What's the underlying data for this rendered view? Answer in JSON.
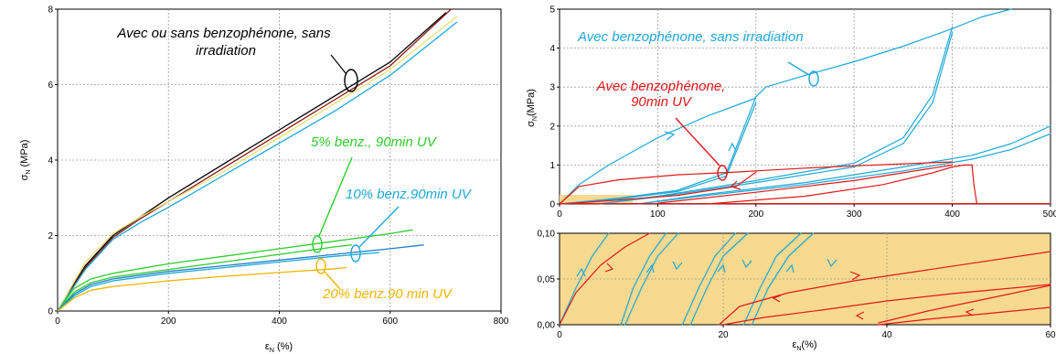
{
  "colors": {
    "black": "#000000",
    "dark_red": "#8b1a1a",
    "yellow_light": "#e8e070",
    "cyan": "#1ea8d8",
    "green": "#2ecc2e",
    "blue": "#1f7fc8",
    "orange": "#f0b400",
    "red": "#e01818",
    "inset_fill": "#f7d98f"
  },
  "chart_data": [
    {
      "type": "line",
      "xlabel_main": "ε",
      "xlabel_sub": "N",
      "xlabel_unit": " (%)",
      "ylabel_main": "σ",
      "ylabel_sub": "N",
      "ylabel_unit": " (MPa)",
      "xlim": [
        0,
        800
      ],
      "ylim": [
        0,
        8
      ],
      "xticks": [
        "0",
        "200",
        "400",
        "600",
        "800"
      ],
      "yticks": [
        "0",
        "2",
        "4",
        "6",
        "8"
      ],
      "annotations": [
        {
          "text": "Avec ou sans benzophénone, sans",
          "color": "#000000"
        },
        {
          "text": "irradiation",
          "color": "#000000"
        },
        {
          "text": "5% benz., 90min UV",
          "color": "#2ecc2e"
        },
        {
          "text": "10% benz.90min UV",
          "color": "#1ea8d8"
        },
        {
          "text": "20% benz.90 min UV",
          "color": "#f0b400"
        }
      ],
      "series": [
        {
          "color": "#000000",
          "x": [
            0,
            50,
            100,
            150,
            200,
            300,
            400,
            500,
            600,
            700
          ],
          "y": [
            0,
            1.2,
            2.0,
            2.5,
            3.0,
            3.9,
            4.8,
            5.7,
            6.6,
            7.9
          ]
        },
        {
          "color": "#8b1a1a",
          "x": [
            0,
            50,
            100,
            150,
            200,
            300,
            400,
            500,
            600,
            710
          ],
          "y": [
            0,
            1.15,
            1.95,
            2.45,
            2.9,
            3.8,
            4.7,
            5.6,
            6.5,
            8.0
          ]
        },
        {
          "color": "#e8e070",
          "x": [
            0,
            50,
            100,
            150,
            200,
            300,
            400,
            500,
            600,
            720
          ],
          "y": [
            0,
            1.3,
            2.05,
            2.5,
            2.9,
            3.7,
            4.6,
            5.5,
            6.4,
            7.8
          ]
        },
        {
          "color": "#1ea8d8",
          "x": [
            0,
            50,
            100,
            150,
            200,
            300,
            400,
            500,
            600,
            720
          ],
          "y": [
            0,
            1.1,
            1.9,
            2.35,
            2.75,
            3.6,
            4.45,
            5.3,
            6.25,
            7.65
          ]
        },
        {
          "color": "#2ecc2e",
          "x": [
            0,
            30,
            60,
            100,
            200,
            300,
            400,
            500,
            600,
            640
          ],
          "y": [
            0,
            0.6,
            0.85,
            1.0,
            1.25,
            1.45,
            1.65,
            1.85,
            2.05,
            2.15
          ]
        },
        {
          "color": "#2ecc2e",
          "x": [
            0,
            30,
            60,
            100,
            200,
            300,
            400,
            500,
            530
          ],
          "y": [
            0,
            0.5,
            0.75,
            0.9,
            1.1,
            1.3,
            1.5,
            1.7,
            1.75
          ]
        },
        {
          "color": "#1f7fc8",
          "x": [
            0,
            30,
            60,
            100,
            200,
            300,
            400,
            500,
            600,
            660
          ],
          "y": [
            0,
            0.45,
            0.7,
            0.85,
            1.05,
            1.2,
            1.35,
            1.5,
            1.65,
            1.75
          ]
        },
        {
          "color": "#1ea8d8",
          "x": [
            0,
            30,
            60,
            100,
            200,
            300,
            400,
            500,
            580
          ],
          "y": [
            0,
            0.4,
            0.65,
            0.8,
            1.0,
            1.15,
            1.3,
            1.45,
            1.55
          ]
        },
        {
          "color": "#f0b400",
          "x": [
            0,
            30,
            60,
            100,
            200,
            300,
            400,
            500,
            520
          ],
          "y": [
            0,
            0.35,
            0.55,
            0.65,
            0.8,
            0.92,
            1.02,
            1.12,
            1.15
          ]
        }
      ]
    },
    {
      "type": "line",
      "ylabel_main": "σ",
      "ylabel_sub": "N",
      "ylabel_unit": "(MPa)",
      "xlim": [
        0,
        500
      ],
      "ylim": [
        0,
        5
      ],
      "xticks": [
        "0",
        "100",
        "200",
        "300",
        "400",
        "500"
      ],
      "yticks": [
        "0",
        "1",
        "2",
        "3",
        "4",
        "5"
      ],
      "annotations": [
        {
          "text": "Avec benzophénone, sans irradiation",
          "color": "#1ea8d8"
        },
        {
          "text": "Avec benzophénone,",
          "color": "#e01818"
        },
        {
          "text": "90min UV",
          "color": "#e01818"
        }
      ],
      "series": [
        {
          "color": "#1ea8d8",
          "x": [
            0,
            20,
            50,
            100,
            150,
            198,
            200,
            210,
            250,
            300,
            350,
            400,
            430,
            460
          ],
          "y": [
            0,
            0.5,
            1.0,
            1.7,
            2.25,
            2.7,
            2.75,
            3.0,
            3.3,
            3.65,
            4.05,
            4.5,
            4.8,
            5.0
          ]
        },
        {
          "color": "#1ea8d8",
          "x": [
            0,
            20,
            60,
            120,
            170,
            200
          ],
          "y": [
            0,
            0.05,
            0.15,
            0.35,
            0.8,
            2.75
          ]
        },
        {
          "color": "#1ea8d8",
          "x": [
            0,
            20,
            60,
            120,
            170,
            200
          ],
          "y": [
            0,
            0.04,
            0.13,
            0.32,
            0.72,
            2.6
          ]
        },
        {
          "color": "#1ea8d8",
          "x": [
            40,
            100,
            200,
            300,
            350,
            380,
            400
          ],
          "y": [
            0,
            0.2,
            0.6,
            1.05,
            1.7,
            2.8,
            4.55
          ]
        },
        {
          "color": "#1ea8d8",
          "x": [
            40,
            100,
            200,
            300,
            350,
            380,
            400
          ],
          "y": [
            0,
            0.18,
            0.55,
            0.95,
            1.55,
            2.6,
            4.4
          ]
        },
        {
          "color": "#1ea8d8",
          "x": [
            80,
            150,
            250,
            350,
            420,
            460,
            500
          ],
          "y": [
            0,
            0.25,
            0.55,
            0.95,
            1.25,
            1.55,
            2.0
          ]
        },
        {
          "color": "#1ea8d8",
          "x": [
            80,
            150,
            250,
            350,
            420,
            460,
            500
          ],
          "y": [
            0,
            0.22,
            0.5,
            0.85,
            1.15,
            1.4,
            1.8
          ]
        },
        {
          "color": "#e01818",
          "x": [
            0,
            20,
            60,
            120,
            180,
            200,
            250,
            300,
            350,
            400
          ],
          "y": [
            0,
            0.45,
            0.62,
            0.75,
            0.82,
            0.85,
            0.92,
            0.98,
            1.03,
            1.08
          ]
        },
        {
          "color": "#e01818",
          "x": [
            0,
            20,
            60,
            120,
            180,
            200
          ],
          "y": [
            0,
            0.03,
            0.1,
            0.22,
            0.45,
            0.82
          ]
        },
        {
          "color": "#e01818",
          "x": [
            100,
            200,
            300,
            350,
            400
          ],
          "y": [
            0.02,
            0.3,
            0.6,
            0.8,
            1.0
          ]
        },
        {
          "color": "#e01818",
          "x": [
            150,
            250,
            330,
            380,
            400,
            412,
            420
          ],
          "y": [
            0,
            0.2,
            0.5,
            0.8,
            0.95,
            1.0,
            1.0
          ]
        },
        {
          "color": "#e01818",
          "x": [
            420,
            422,
            425
          ],
          "y": [
            1.0,
            0.5,
            0
          ]
        },
        {
          "color": "#e01818",
          "x": [
            0,
            500
          ],
          "y": [
            0.01,
            0.01
          ]
        }
      ]
    },
    {
      "type": "line",
      "xlabel_main": "ε",
      "xlabel_sub": "N",
      "xlabel_unit": "(%)",
      "xlim": [
        0,
        60
      ],
      "ylim": [
        0,
        0.1
      ],
      "xticks": [
        "0",
        "20",
        "40",
        "60"
      ],
      "yticks": [
        "0,00",
        "0,05",
        "0,10"
      ],
      "series": [
        {
          "color": "#1ea8d8",
          "x": [
            0,
            2,
            4,
            6
          ],
          "y": [
            0,
            0.04,
            0.075,
            0.1
          ]
        },
        {
          "color": "#1ea8d8",
          "x": [
            7.5,
            9,
            11,
            13
          ],
          "y": [
            0,
            0.04,
            0.075,
            0.1
          ]
        },
        {
          "color": "#1ea8d8",
          "x": [
            8,
            10,
            12,
            14.5
          ],
          "y": [
            0,
            0.04,
            0.075,
            0.1
          ]
        },
        {
          "color": "#1ea8d8",
          "x": [
            15,
            17,
            19,
            21.5
          ],
          "y": [
            0,
            0.04,
            0.075,
            0.1
          ]
        },
        {
          "color": "#1ea8d8",
          "x": [
            16,
            18,
            20,
            23
          ],
          "y": [
            0,
            0.04,
            0.075,
            0.1
          ]
        },
        {
          "color": "#1ea8d8",
          "x": [
            22.5,
            24.5,
            26.5,
            29.5
          ],
          "y": [
            0,
            0.04,
            0.075,
            0.1
          ]
        },
        {
          "color": "#1ea8d8",
          "x": [
            23.5,
            25.5,
            28,
            31
          ],
          "y": [
            0,
            0.04,
            0.075,
            0.1
          ]
        },
        {
          "color": "#e01818",
          "x": [
            0,
            2,
            5,
            8,
            11
          ],
          "y": [
            0,
            0.035,
            0.065,
            0.085,
            0.1
          ]
        },
        {
          "color": "#e01818",
          "x": [
            19.5,
            22,
            28,
            36,
            45,
            60
          ],
          "y": [
            0,
            0.02,
            0.035,
            0.048,
            0.06,
            0.08
          ]
        },
        {
          "color": "#e01818",
          "x": [
            20,
            25,
            32,
            40,
            48,
            60
          ],
          "y": [
            0,
            0.008,
            0.016,
            0.026,
            0.034,
            0.044
          ]
        },
        {
          "color": "#e01818",
          "x": [
            39,
            45,
            52,
            60
          ],
          "y": [
            0.002,
            0.015,
            0.028,
            0.043
          ]
        },
        {
          "color": "#e01818",
          "x": [
            39,
            45,
            52,
            60
          ],
          "y": [
            0,
            0.006,
            0.012,
            0.019
          ]
        }
      ]
    }
  ]
}
